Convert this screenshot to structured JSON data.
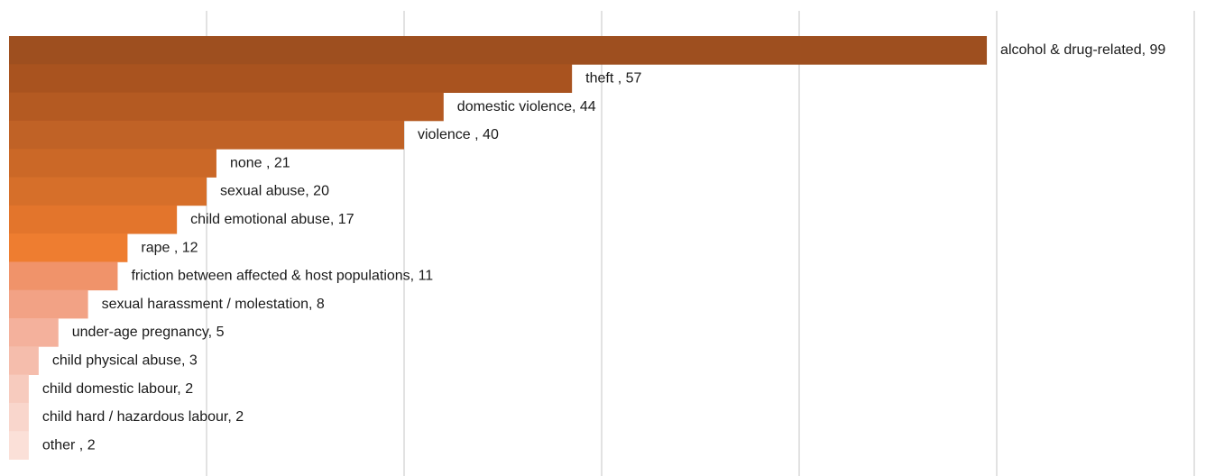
{
  "chart_data": {
    "type": "bar",
    "orientation": "horizontal",
    "title": "",
    "xlabel": "",
    "ylabel": "",
    "xlim": [
      0,
      120
    ],
    "grid": true,
    "legend": "none",
    "categories": [
      "alcohol & drug-related",
      "theft ",
      "domestic violence",
      "violence ",
      "none ",
      "sexual abuse",
      "child emotional abuse",
      "rape ",
      "friction between affected & host populations",
      "sexual harassment / molestation",
      "under-age pregnancy",
      "child physical abuse",
      "child domestic labour",
      "child hard / hazardous labour",
      "other "
    ],
    "values": [
      99,
      57,
      44,
      40,
      21,
      20,
      17,
      12,
      11,
      8,
      5,
      3,
      2,
      2,
      2
    ],
    "labels": [
      "alcohol & drug-related, 99",
      "theft , 57",
      "domestic violence, 44",
      "violence , 40",
      "none , 21",
      "sexual abuse, 20",
      "child emotional abuse, 17",
      "rape , 12",
      "friction between affected & host populations, 11",
      "sexual harassment / molestation, 8",
      "under-age pregnancy, 5",
      "child physical abuse, 3",
      "child domestic labour, 2",
      "child hard / hazardous labour, 2",
      "other , 2"
    ],
    "colors": [
      "#9e4f1f",
      "#a9531f",
      "#b45a22",
      "#c06226",
      "#cb6827",
      "#d66f2a",
      "#e3752c",
      "#ee7d30",
      "#f0936a",
      "#f2a285",
      "#f4b19c",
      "#f5bdac",
      "#f7cbbe",
      "#f9d6cc",
      "#fbe0d8"
    ],
    "gridline_color": "#d9d9d9"
  }
}
